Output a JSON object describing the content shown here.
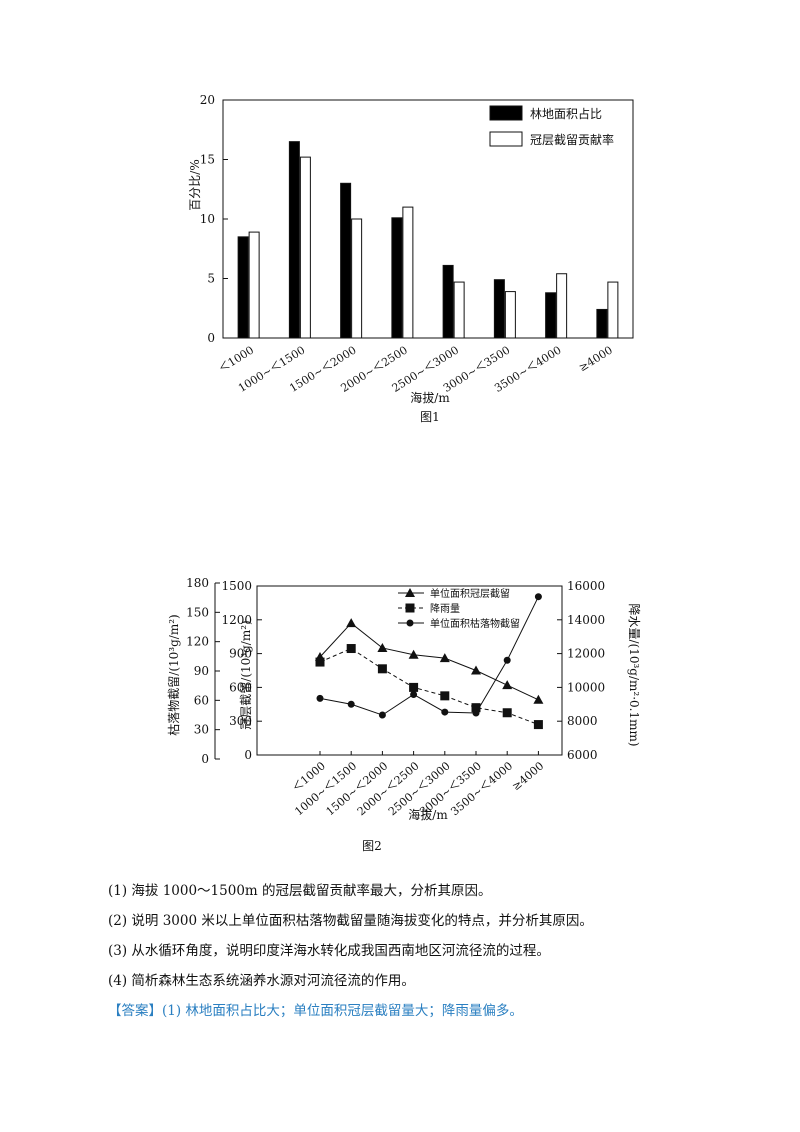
{
  "figure1": {
    "caption": "图1",
    "chart_data": {
      "type": "bar",
      "xlabel": "海拔/m",
      "ylabel": "百分比/%",
      "ylim": [
        0,
        20
      ],
      "yticks": [
        0,
        5,
        10,
        15,
        20
      ],
      "categories": [
        "＜1000",
        "1000~＜1500",
        "1500~＜2000",
        "2000~＜2500",
        "2500~＜3000",
        "3000~＜3500",
        "3500~＜4000",
        "≥4000"
      ],
      "series": [
        {
          "name": "林地面积占比",
          "fill": "#000000",
          "values": [
            8.5,
            16.5,
            13.0,
            10.1,
            6.1,
            4.9,
            3.8,
            2.4
          ]
        },
        {
          "name": "冠层截留贡献率",
          "fill": "#ffffff",
          "values": [
            8.9,
            15.2,
            10.0,
            11.0,
            4.7,
            3.9,
            5.4,
            4.7
          ]
        }
      ],
      "legend_position": "top-right"
    }
  },
  "figure2": {
    "caption": "图2",
    "chart_data": {
      "type": "line",
      "xlabel": "海拔/m",
      "categories": [
        "＜1000",
        "1000~＜1500",
        "1500~＜2000",
        "2000~＜2500",
        "2500~＜3000",
        "3000~＜3500",
        "3500~＜4000",
        "≥4000"
      ],
      "axes": {
        "left_outer": {
          "label": "枯落物截留/(10³g/m²)",
          "ylim": [
            0,
            180
          ],
          "ticks": [
            0,
            30,
            60,
            90,
            120,
            150,
            180
          ]
        },
        "left_inner": {
          "label": "冠层截留/(10³g/m²)",
          "ylim": [
            0,
            1500
          ],
          "ticks": [
            0,
            300,
            600,
            900,
            1200,
            1500
          ]
        },
        "right": {
          "label": "降水量/(10³g/m²·0.1mm)",
          "ylim": [
            6000,
            16000
          ],
          "ticks": [
            6000,
            8000,
            10000,
            12000,
            14000,
            16000
          ]
        }
      },
      "series": [
        {
          "name": "单位面积冠层截留",
          "axis": "left_inner",
          "marker": "triangle",
          "dash": "solid",
          "values": [
            870,
            1170,
            950,
            890,
            860,
            750,
            620,
            490
          ]
        },
        {
          "name": "降雨量",
          "axis": "right",
          "marker": "square",
          "dash": "dashed",
          "values": [
            11500,
            12300,
            11100,
            10000,
            9500,
            8800,
            8500,
            7800
          ]
        },
        {
          "name": "单位面积枯落物截留",
          "axis": "left_outer",
          "marker": "circle",
          "dash": "solid",
          "values": [
            62,
            56,
            45,
            66,
            48,
            47,
            101,
            166
          ]
        }
      ],
      "legend_position": "top-right"
    }
  },
  "questions": [
    "(1) 海拔 1000～1500m 的冠层截留贡献率最大，分析其原因。",
    "(2) 说明 3000 米以上单位面积枯落物截留量随海拔变化的特点，并分析其原因。",
    "(3) 从水循环角度，说明印度洋海水转化成我国西南地区河流径流的过程。",
    "(4) 简析森林生态系统涵养水源对河流径流的作用。"
  ],
  "answer": {
    "label": "【答案】",
    "text": "(1) 林地面积占比大；单位面积冠层截留量大；降雨量偏多。"
  }
}
